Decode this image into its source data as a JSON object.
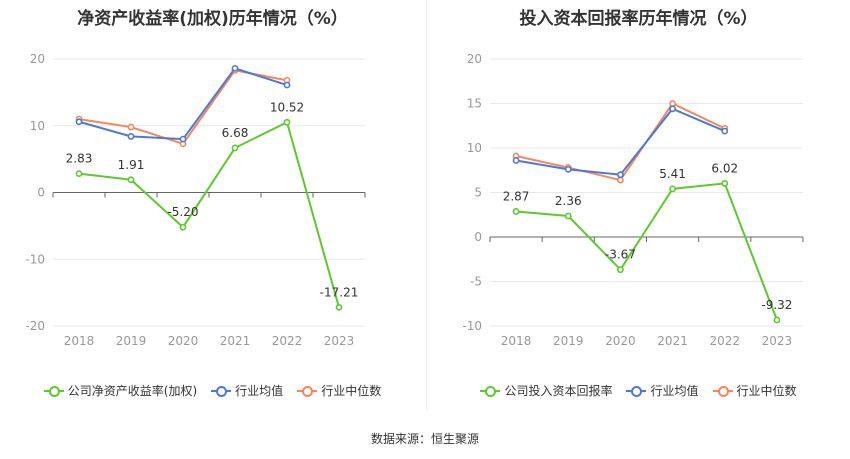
{
  "source_label": "数据来源：恒生聚源",
  "chart_data": [
    {
      "type": "line",
      "title": "净资产收益率(加权)历年情况（%）",
      "categories": [
        "2018",
        "2019",
        "2020",
        "2021",
        "2022",
        "2023"
      ],
      "ylim": [
        -20,
        20
      ],
      "yticks": [
        -20,
        -10,
        0,
        10,
        20
      ],
      "grid": true,
      "legend": "bottom",
      "series": [
        {
          "name": "公司净资产收益率(加权)",
          "color": "#5dc92f",
          "values": [
            2.83,
            1.91,
            -5.2,
            6.68,
            10.52,
            -17.21
          ],
          "labels": [
            "2.83",
            "1.91",
            "-5.20",
            "6.68",
            "10.52",
            "-17.21"
          ]
        },
        {
          "name": "行业均值",
          "color": "#4d79d6",
          "values": [
            10.6,
            8.4,
            8.0,
            18.6,
            16.1,
            null
          ]
        },
        {
          "name": "行业中位数",
          "color": "#f5875c",
          "values": [
            11.0,
            9.8,
            7.3,
            18.3,
            16.8,
            null
          ]
        }
      ]
    },
    {
      "type": "line",
      "title": "投入资本回报率历年情况（%）",
      "categories": [
        "2018",
        "2019",
        "2020",
        "2021",
        "2022",
        "2023"
      ],
      "ylim": [
        -10,
        20
      ],
      "yticks": [
        -10,
        -5,
        0,
        5,
        10,
        15,
        20
      ],
      "grid": true,
      "legend": "bottom",
      "series": [
        {
          "name": "公司投入资本回报率",
          "color": "#5dc92f",
          "values": [
            2.87,
            2.36,
            -3.67,
            5.41,
            6.02,
            -9.32
          ],
          "labels": [
            "2.87",
            "2.36",
            "-3.67",
            "5.41",
            "6.02",
            "-9.32"
          ]
        },
        {
          "name": "行业均值",
          "color": "#4d79d6",
          "values": [
            8.6,
            7.6,
            7.0,
            14.4,
            11.9,
            null
          ]
        },
        {
          "name": "行业中位数",
          "color": "#f5875c",
          "values": [
            9.1,
            7.8,
            6.4,
            15.0,
            12.2,
            null
          ]
        }
      ]
    }
  ]
}
